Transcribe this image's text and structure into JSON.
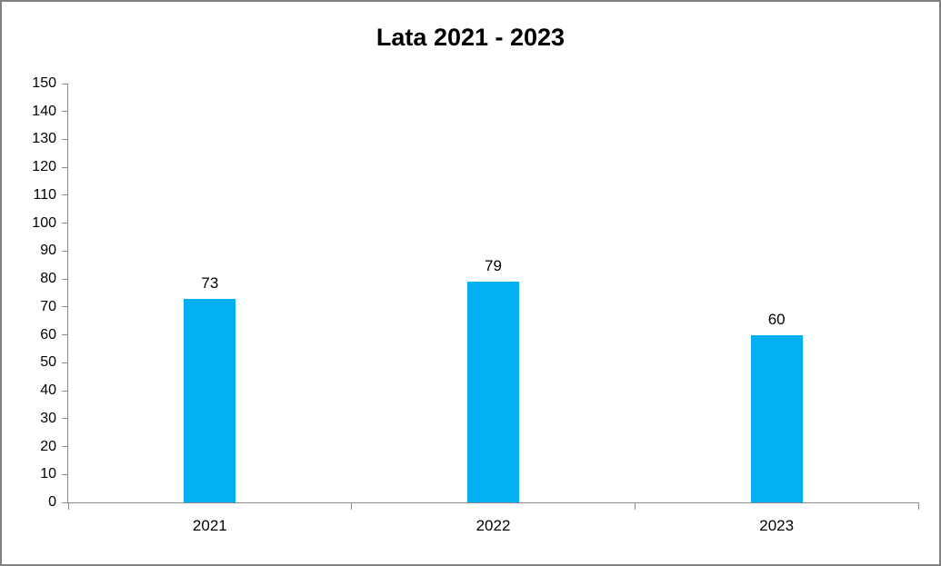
{
  "window": {
    "background": "#ffffff",
    "border_color": "#808080"
  },
  "chart_data": {
    "type": "bar",
    "title": "Lata 2021 - 2023",
    "categories": [
      "2021",
      "2022",
      "2023"
    ],
    "values": [
      73,
      79,
      60
    ],
    "data_labels": [
      "73",
      "79",
      "60"
    ],
    "xlabel": "",
    "ylabel": "",
    "ylim": [
      0,
      150
    ],
    "y_tick_step": 10,
    "y_tick_labels": [
      "0",
      "10",
      "20",
      "30",
      "40",
      "50",
      "60",
      "70",
      "80",
      "90",
      "100",
      "110",
      "120",
      "130",
      "140",
      "150"
    ],
    "grid": "off",
    "legend": "none",
    "bar_color": "#00B0F0",
    "axis_color": "#8C8C8C",
    "text_color": "#000000"
  }
}
